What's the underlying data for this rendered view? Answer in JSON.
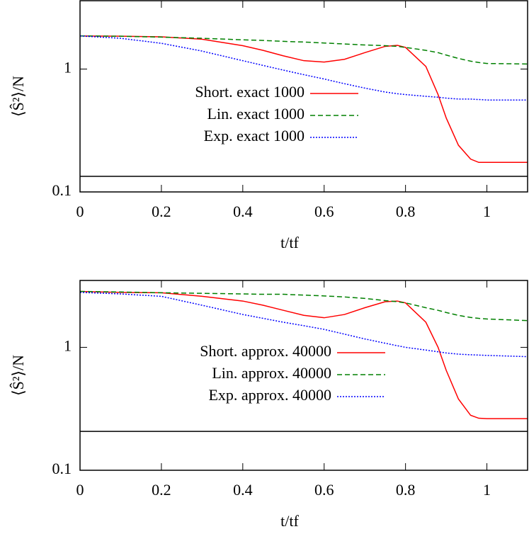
{
  "chart_data": [
    {
      "type": "line",
      "xlabel": "t/tf",
      "ylabel": "⟨Ŝ²⟩/N",
      "log_y": true,
      "xlim": [
        0,
        1.1
      ],
      "xticks": [
        0,
        0.2,
        0.4,
        0.6,
        0.8,
        1
      ],
      "ylim": [
        0.1,
        3.6
      ],
      "yticks": [
        0.1,
        1
      ],
      "hline": 0.134,
      "x": [
        0,
        0.1,
        0.2,
        0.3,
        0.4,
        0.45,
        0.5,
        0.55,
        0.6,
        0.65,
        0.7,
        0.75,
        0.78,
        0.8,
        0.85,
        0.88,
        0.9,
        0.93,
        0.96,
        0.98,
        1.0,
        1.1
      ],
      "series": [
        {
          "name": "Short. exact 1000",
          "color": "#ff0000",
          "style": "solid",
          "values": [
            1.86,
            1.85,
            1.83,
            1.75,
            1.55,
            1.42,
            1.28,
            1.17,
            1.14,
            1.2,
            1.36,
            1.53,
            1.56,
            1.5,
            1.05,
            0.62,
            0.4,
            0.24,
            0.185,
            0.174,
            0.174,
            0.174
          ]
        },
        {
          "name": "Lin. exact 1000",
          "color": "#008000",
          "style": "dashed",
          "values": [
            1.86,
            1.85,
            1.82,
            1.78,
            1.73,
            1.71,
            1.68,
            1.66,
            1.63,
            1.6,
            1.57,
            1.55,
            1.53,
            1.5,
            1.42,
            1.36,
            1.3,
            1.22,
            1.16,
            1.13,
            1.11,
            1.1
          ]
        },
        {
          "name": "Exp. exact 1000",
          "color": "#0000ff",
          "style": "dotted",
          "values": [
            1.86,
            1.78,
            1.62,
            1.4,
            1.17,
            1.07,
            0.98,
            0.9,
            0.83,
            0.76,
            0.7,
            0.65,
            0.63,
            0.62,
            0.6,
            0.59,
            0.58,
            0.57,
            0.57,
            0.565,
            0.56,
            0.56
          ]
        }
      ]
    },
    {
      "type": "line",
      "xlabel": "t/tf",
      "ylabel": "⟨Ŝ²⟩/N",
      "log_y": true,
      "xlim": [
        0,
        1.1
      ],
      "xticks": [
        0,
        0.2,
        0.4,
        0.6,
        0.8,
        1
      ],
      "ylim": [
        0.1,
        3.5
      ],
      "yticks": [
        0.1,
        1
      ],
      "hline": 0.207,
      "x": [
        0,
        0.1,
        0.2,
        0.3,
        0.4,
        0.45,
        0.5,
        0.55,
        0.6,
        0.65,
        0.7,
        0.75,
        0.78,
        0.8,
        0.85,
        0.88,
        0.9,
        0.93,
        0.96,
        0.98,
        1.0,
        1.1
      ],
      "series": [
        {
          "name": "Short. approx. 40000",
          "color": "#ff0000",
          "style": "solid",
          "values": [
            2.85,
            2.8,
            2.78,
            2.6,
            2.38,
            2.2,
            2.0,
            1.82,
            1.74,
            1.85,
            2.1,
            2.35,
            2.38,
            2.3,
            1.6,
            1.0,
            0.65,
            0.38,
            0.28,
            0.265,
            0.263,
            0.263
          ]
        },
        {
          "name": "Lin. approx. 40000",
          "color": "#008000",
          "style": "dashed",
          "values": [
            2.85,
            2.82,
            2.78,
            2.75,
            2.72,
            2.7,
            2.7,
            2.66,
            2.62,
            2.57,
            2.5,
            2.4,
            2.35,
            2.3,
            2.1,
            2.0,
            1.92,
            1.82,
            1.75,
            1.72,
            1.7,
            1.65
          ]
        },
        {
          "name": "Exp. approx. 40000",
          "color": "#0000ff",
          "style": "dotted",
          "values": [
            2.8,
            2.72,
            2.6,
            2.2,
            1.85,
            1.72,
            1.6,
            1.5,
            1.4,
            1.28,
            1.17,
            1.08,
            1.03,
            1.0,
            0.95,
            0.92,
            0.9,
            0.88,
            0.87,
            0.865,
            0.86,
            0.84
          ]
        }
      ]
    }
  ]
}
